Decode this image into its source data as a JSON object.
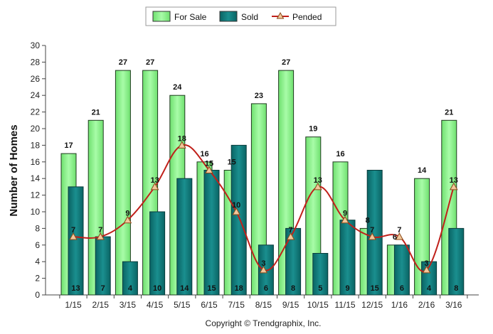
{
  "chart_data": {
    "type": "bar",
    "categories": [
      "1/15",
      "2/15",
      "3/15",
      "4/15",
      "5/15",
      "6/15",
      "7/15",
      "8/15",
      "9/15",
      "10/15",
      "11/15",
      "12/15",
      "1/16",
      "2/16",
      "3/16"
    ],
    "series": [
      {
        "name": "For Sale",
        "type": "bar",
        "color": "#8ef58e",
        "values": [
          17,
          21,
          27,
          27,
          24,
          16,
          15,
          23,
          27,
          19,
          16,
          8,
          6,
          14,
          21
        ]
      },
      {
        "name": "Sold",
        "type": "bar",
        "color": "#0f7a7a",
        "values": [
          13,
          7,
          4,
          10,
          14,
          15,
          18,
          6,
          8,
          5,
          9,
          15,
          6,
          4,
          8
        ]
      },
      {
        "name": "Pended",
        "type": "line",
        "color": "#c0201a",
        "values": [
          7,
          7,
          9,
          13,
          18,
          15,
          10,
          3,
          7,
          13,
          9,
          7,
          7,
          3,
          13
        ]
      }
    ],
    "ylabel": "Number of Homes",
    "ylim": [
      0,
      30
    ],
    "yticks": [
      0,
      2,
      4,
      6,
      8,
      10,
      12,
      14,
      16,
      18,
      20,
      22,
      24,
      26,
      28,
      30
    ],
    "legend_position": "top-center",
    "grid": false
  },
  "footer": {
    "copyright": "Copyright © Trendgraphix, Inc."
  }
}
